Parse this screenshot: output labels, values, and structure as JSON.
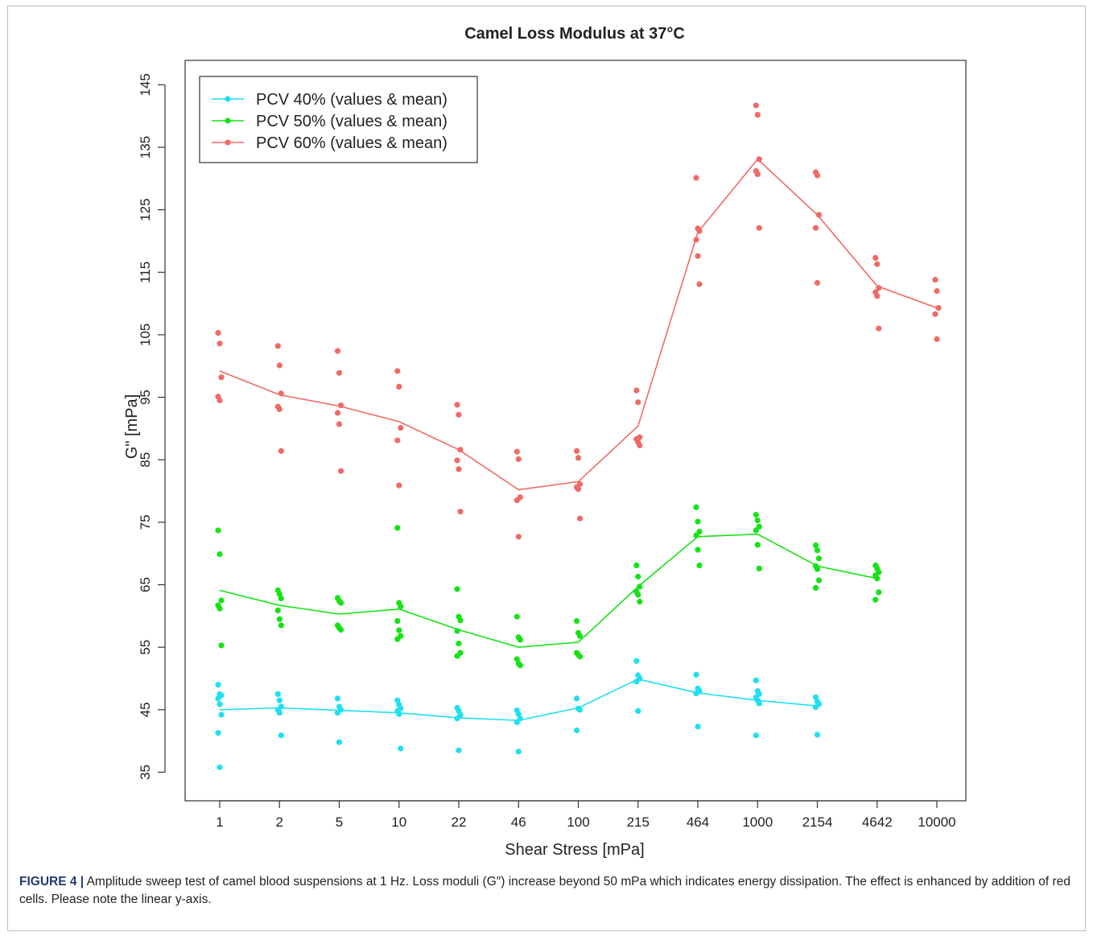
{
  "chart_data": {
    "type": "line",
    "title": "Camel Loss Modulus at 37°C",
    "xlabel": "Shear Stress [mPa]",
    "ylabel": "G\" [mPa]",
    "ylim": [
      32,
      148
    ],
    "y_ticks": [
      35,
      45,
      55,
      65,
      75,
      85,
      95,
      105,
      115,
      125,
      135,
      145
    ],
    "categories": [
      "1",
      "2",
      "5",
      "10",
      "22",
      "46",
      "100",
      "215",
      "464",
      "1000",
      "2154",
      "4642",
      "10000"
    ],
    "legend_position": "top-left",
    "grid": false,
    "series": [
      {
        "name": "PCV 40% (values & mean)",
        "color": "#1fe0ef",
        "mean": [
          45.0,
          45.3,
          44.9,
          44.5,
          43.7,
          43.3,
          45.3,
          49.9,
          47.7,
          46.5,
          45.6,
          null,
          null
        ],
        "values": [
          [
            49.0,
            47.5,
            47.3,
            46.8,
            45.9,
            44.2,
            41.3,
            35.8
          ],
          [
            47.5,
            46.5,
            45.5,
            45.0,
            44.5,
            40.9
          ],
          [
            46.8,
            45.5,
            45.0,
            44.5,
            39.8
          ],
          [
            46.5,
            45.8,
            45.2,
            44.8,
            44.3,
            38.8
          ],
          [
            45.3,
            44.8,
            44.2,
            43.6,
            38.5
          ],
          [
            44.9,
            44.3,
            43.6,
            43.0,
            38.3
          ],
          [
            46.8,
            45.2,
            45.0,
            41.7
          ],
          [
            52.8,
            50.5,
            50.0,
            49.5,
            44.8
          ],
          [
            50.6,
            48.4,
            48.0,
            47.6,
            42.3
          ],
          [
            49.7,
            48.0,
            47.5,
            47.0,
            46.5,
            46.0,
            40.9
          ],
          [
            47.0,
            46.3,
            45.9,
            45.4,
            41.0
          ],
          [],
          []
        ]
      },
      {
        "name": "PCV 50% (values & mean)",
        "color": "#15e315",
        "mean": [
          64.1,
          61.7,
          60.3,
          61.1,
          57.8,
          55.0,
          55.8,
          64.7,
          72.7,
          73.1,
          68.0,
          66.0,
          null
        ],
        "values": [
          [
            73.7,
            69.9,
            62.5,
            61.7,
            61.2,
            55.3
          ],
          [
            64.1,
            63.5,
            62.8,
            60.9,
            59.5,
            58.5
          ],
          [
            62.9,
            62.4,
            62.1,
            58.5,
            58.1,
            57.8
          ],
          [
            74.1,
            62.1,
            61.5,
            59.2,
            57.7,
            56.8,
            56.3
          ],
          [
            64.3,
            59.9,
            59.3,
            57.6,
            55.6,
            54.1,
            53.6
          ],
          [
            59.9,
            56.6,
            56.2,
            53.1,
            52.4,
            52.1
          ],
          [
            59.2,
            57.3,
            56.8,
            54.1,
            53.8,
            53.5
          ],
          [
            68.1,
            66.3,
            64.7,
            63.9,
            63.4,
            62.3
          ],
          [
            77.4,
            75.1,
            73.5,
            72.9,
            70.6,
            68.1
          ],
          [
            76.2,
            75.3,
            74.3,
            73.7,
            71.4,
            67.6
          ],
          [
            71.3,
            70.5,
            69.2,
            68.0,
            67.5,
            65.7,
            64.5
          ],
          [
            68.1,
            67.6,
            67.0,
            66.5,
            66.0,
            63.8,
            62.6
          ],
          []
        ]
      },
      {
        "name": "PCV 60% (values & mean)",
        "color": "#f06a66",
        "mean": [
          99.2,
          95.4,
          93.6,
          91.1,
          86.6,
          80.2,
          81.5,
          90.4,
          121.4,
          133.1,
          124.2,
          112.8,
          109.3
        ],
        "values": [
          [
            105.3,
            103.6,
            98.2,
            95.1,
            94.5
          ],
          [
            103.2,
            100.1,
            95.6,
            93.5,
            93.1,
            86.4
          ],
          [
            102.4,
            98.9,
            93.7,
            92.5,
            90.7,
            83.2
          ],
          [
            99.2,
            96.7,
            90.1,
            88.1,
            80.9
          ],
          [
            93.8,
            92.2,
            86.6,
            84.9,
            83.5,
            76.7
          ],
          [
            86.3,
            85.1,
            79.0,
            78.5,
            72.7
          ],
          [
            86.4,
            85.3,
            81.1,
            80.6,
            80.3,
            75.6
          ],
          [
            96.1,
            94.2,
            88.6,
            88.3,
            87.8,
            87.3
          ],
          [
            130.1,
            122.0,
            121.6,
            120.2,
            117.6,
            113.1
          ],
          [
            141.7,
            140.2,
            133.1,
            131.2,
            130.7,
            122.1
          ],
          [
            131.0,
            130.5,
            124.2,
            122.1,
            113.3
          ],
          [
            117.3,
            116.3,
            112.5,
            111.8,
            111.2,
            106.0
          ],
          [
            113.8,
            112.0,
            109.3,
            108.3,
            104.3
          ]
        ]
      }
    ]
  },
  "caption": {
    "label": "FIGURE 4 |",
    "text": " Amplitude sweep test of camel blood suspensions at 1 Hz. Loss moduli (G″) increase beyond 50 mPa which indicates energy dissipation. The effect is enhanced by addition of red cells. Please note the linear y-axis."
  }
}
